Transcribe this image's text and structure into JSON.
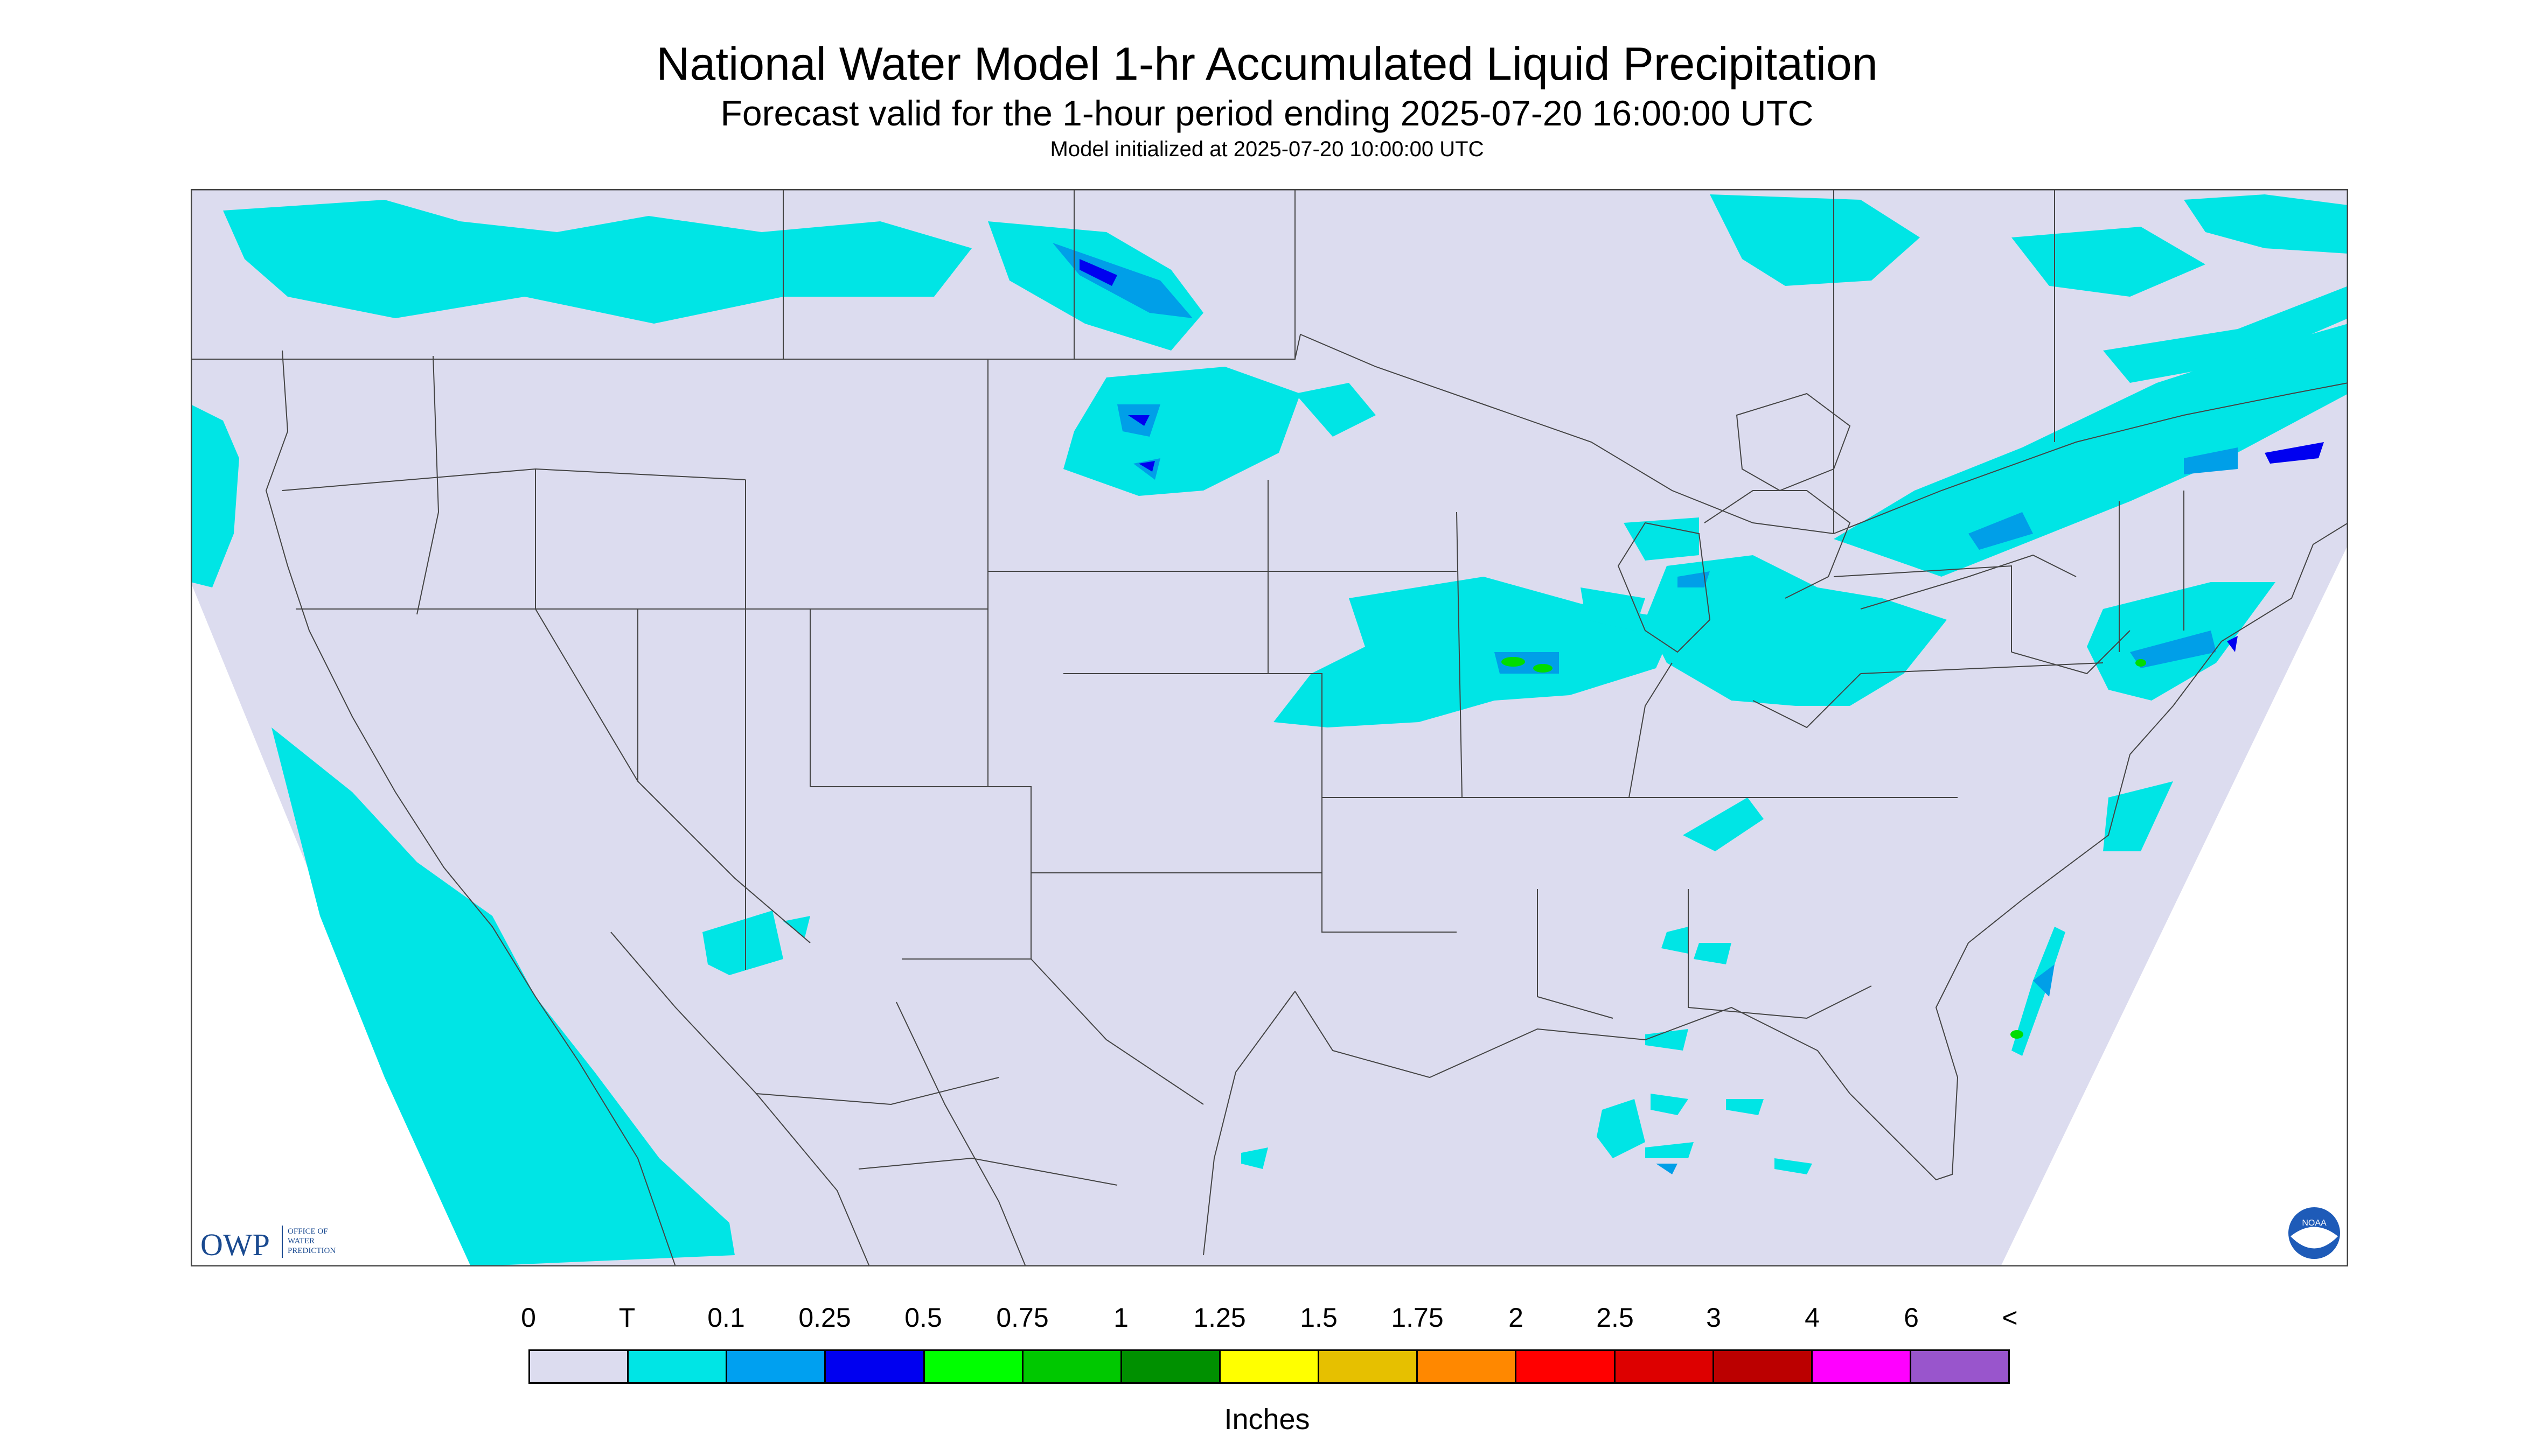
{
  "header": {
    "title": "National Water Model 1-hr Accumulated Liquid Precipitation",
    "subtitle": "Forecast valid for the 1-hour period ending 2025-07-20 16:00:00 UTC",
    "init": "Model initialized at 2025-07-20 10:00:00 UTC"
  },
  "logos": {
    "owp_abbrev": "OWP",
    "owp_name_lines": [
      "OFFICE OF",
      "WATER",
      "PREDICTION"
    ],
    "noaa_text": "NOAA"
  },
  "colors": {
    "background": "#dcdcef",
    "outside": "#ffffff",
    "boundary": "#444444",
    "trace": "#00e5e5",
    "light": "#009fe8",
    "moderate": "#0000f0",
    "green": "#00dd00"
  },
  "legend": {
    "labels": [
      "0",
      "T",
      "0.1",
      "0.25",
      "0.5",
      "0.75",
      "1",
      "1.25",
      "1.5",
      "1.75",
      "2",
      "2.5",
      "3",
      "4",
      "6",
      "<"
    ],
    "colors": [
      "#dcdcef",
      "#00e5e5",
      "#00a0f0",
      "#0000f0",
      "#00ff00",
      "#00c800",
      "#009000",
      "#ffff00",
      "#e6c000",
      "#ff8800",
      "#ff0000",
      "#dd0000",
      "#bb0000",
      "#ff00ff",
      "#9955cc"
    ],
    "units": "Inches"
  }
}
